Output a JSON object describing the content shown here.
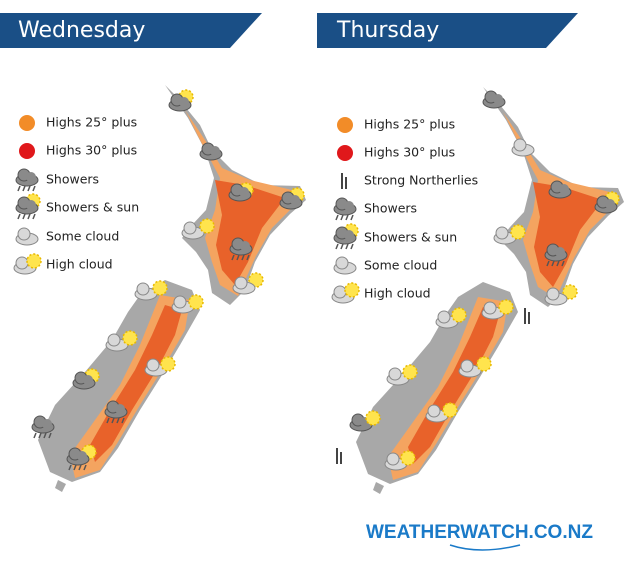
{
  "panels": [
    {
      "title": "Wednesday",
      "legend": [
        "Highs 25° plus",
        "Highs 30° plus",
        "Showers",
        "Showers & sun",
        "Some cloud",
        "High cloud"
      ]
    },
    {
      "title": "Thursday",
      "legend": [
        "Highs 25° plus",
        "Highs 30° plus",
        "Strong Northerlies",
        "Showers",
        "Showers & sun",
        "Some cloud",
        "High cloud"
      ]
    }
  ],
  "footer": {
    "brand": "WEATHERWATCH.CO.NZ"
  }
}
